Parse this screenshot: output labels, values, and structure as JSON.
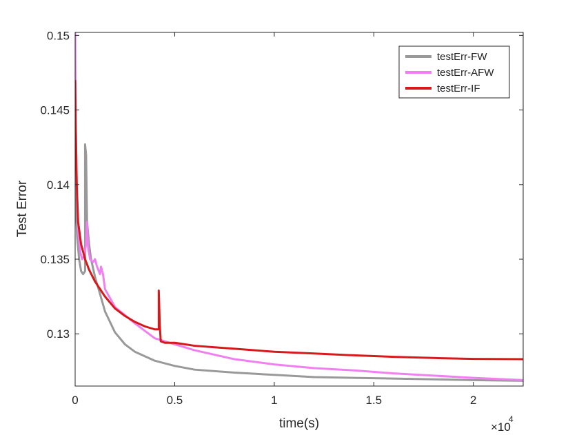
{
  "chart_data": {
    "type": "line",
    "title": "",
    "xlabel": "time(s)",
    "ylabel": "Test Error",
    "x_exponent_label": "×10",
    "x_exponent_power": "4",
    "xlim": [
      0,
      2.25
    ],
    "ylim": [
      0.1265,
      0.1502
    ],
    "x_unit_multiplier": 10000,
    "x_ticks": [
      0,
      0.5,
      1,
      1.5,
      2
    ],
    "x_tick_labels": [
      "0",
      "0.5",
      "1",
      "1.5",
      "2"
    ],
    "y_ticks": [
      0.13,
      0.135,
      0.14,
      0.145,
      0.15
    ],
    "y_tick_labels": [
      "0.13",
      "0.135",
      "0.14",
      "0.145",
      "0.15"
    ],
    "grid": false,
    "legend_position": "top-right",
    "series": [
      {
        "name": "testErr-FW",
        "color": "#999999",
        "x": [
          0,
          0.004,
          0.01,
          0.02,
          0.03,
          0.04,
          0.05,
          0.05,
          0.055,
          0.06,
          0.07,
          0.08,
          0.1,
          0.12,
          0.15,
          0.2,
          0.25,
          0.3,
          0.4,
          0.5,
          0.6,
          0.8,
          1.0,
          1.2,
          1.4,
          1.6,
          1.8,
          2.0,
          2.25
        ],
        "y": [
          0.1405,
          0.1385,
          0.1365,
          0.135,
          0.1342,
          0.134,
          0.1342,
          0.1427,
          0.142,
          0.1375,
          0.136,
          0.135,
          0.1338,
          0.1329,
          0.1315,
          0.1301,
          0.1293,
          0.1288,
          0.1282,
          0.12785,
          0.1276,
          0.1274,
          0.12725,
          0.1271,
          0.12705,
          0.127,
          0.12695,
          0.1269,
          0.12685
        ]
      },
      {
        "name": "testErr-AFW",
        "color": "#f07ff0",
        "x": [
          0,
          0.003,
          0.008,
          0.015,
          0.025,
          0.035,
          0.045,
          0.055,
          0.06,
          0.065,
          0.075,
          0.09,
          0.1,
          0.11,
          0.125,
          0.13,
          0.14,
          0.15,
          0.2,
          0.3,
          0.4,
          0.5,
          0.6,
          0.8,
          1.0,
          1.2,
          1.4,
          1.6,
          1.8,
          2.0,
          2.25
        ],
        "y": [
          0.1502,
          0.144,
          0.14,
          0.137,
          0.1355,
          0.135,
          0.1352,
          0.136,
          0.1375,
          0.1358,
          0.135,
          0.1348,
          0.135,
          0.1345,
          0.134,
          0.1345,
          0.134,
          0.133,
          0.1318,
          0.1307,
          0.1297,
          0.1293,
          0.1289,
          0.1283,
          0.12795,
          0.1277,
          0.12755,
          0.12735,
          0.1272,
          0.12705,
          0.1269
        ]
      },
      {
        "name": "testErr-IF",
        "color": "#d7191c",
        "x": [
          0,
          0.003,
          0.008,
          0.015,
          0.03,
          0.05,
          0.07,
          0.1,
          0.15,
          0.2,
          0.25,
          0.3,
          0.35,
          0.4,
          0.42,
          0.42,
          0.425,
          0.43,
          0.45,
          0.5,
          0.55,
          0.6,
          0.7,
          0.8,
          1.0,
          1.2,
          1.4,
          1.6,
          1.8,
          2.0,
          2.25
        ],
        "y": [
          0.147,
          0.144,
          0.14,
          0.1375,
          0.136,
          0.135,
          0.1343,
          0.1335,
          0.1325,
          0.1317,
          0.1312,
          0.1308,
          0.1305,
          0.1303,
          0.1303,
          0.1329,
          0.1306,
          0.1295,
          0.1294,
          0.1294,
          0.1293,
          0.1292,
          0.1291,
          0.129,
          0.1288,
          0.12868,
          0.12856,
          0.12846,
          0.12838,
          0.12832,
          0.1283
        ]
      }
    ]
  }
}
